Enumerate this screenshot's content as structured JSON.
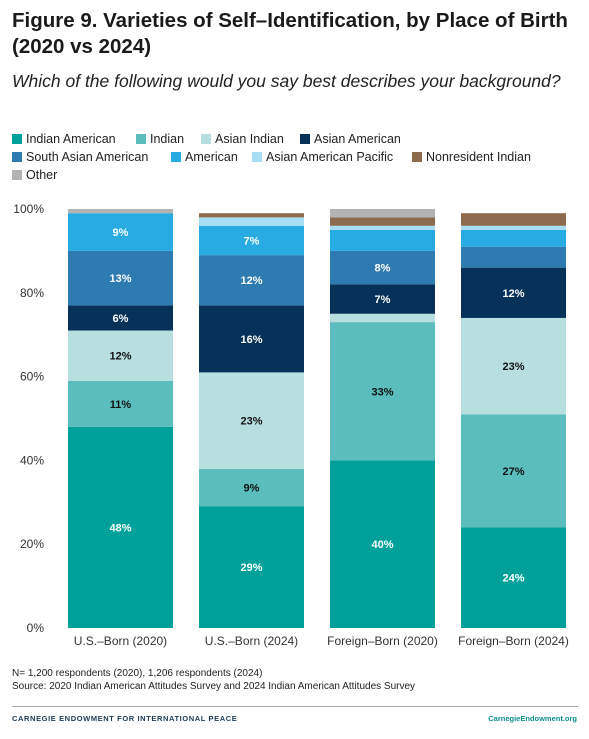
{
  "header": {
    "title": "Figure 9. Varieties of Self–Identification, by Place of Birth (2020 vs 2024)",
    "subtitle": "Which of the following would you say best describes your background?"
  },
  "footer": {
    "note": "N= 1,200 respondents (2020), 1,206 respondents (2024)",
    "source": "Source: 2020 Indian American Attitudes Survey and 2024 Indian American Attitudes Survey",
    "organization": "CARNEGIE ENDOWMENT FOR INTERNATIONAL PEACE",
    "website": "CarnegieEndowment.org"
  },
  "chart_data": {
    "type": "bar",
    "stacked": true,
    "categories": [
      "U.S.–Born (2020)",
      "U.S.–Born (2024)",
      "Foreign–Born (2020)",
      "Foreign–Born (2024)"
    ],
    "ylim": [
      0,
      100
    ],
    "yticks": [
      "0%",
      "20%",
      "40%",
      "60%",
      "80%",
      "100%"
    ],
    "grid": false,
    "legend_position": "top",
    "series": [
      {
        "name": "Indian American",
        "color": "#00a19a",
        "values": [
          48,
          29,
          40,
          24
        ],
        "labels": [
          "48%",
          "29%",
          "40%",
          "24%"
        ],
        "label_color": "#ffffff"
      },
      {
        "name": "Indian",
        "color": "#5bbdbd",
        "values": [
          11,
          9,
          33,
          27
        ],
        "labels": [
          "11%",
          "9%",
          "33%",
          "27%"
        ],
        "label_color": "#111111"
      },
      {
        "name": "Asian Indian",
        "color": "#b8dfe0",
        "values": [
          12,
          23,
          2,
          23
        ],
        "labels": [
          "12%",
          "23%",
          "",
          "23%"
        ],
        "label_color": "#111111"
      },
      {
        "name": "Asian American",
        "color": "#06325a",
        "values": [
          6,
          16,
          7,
          12
        ],
        "labels": [
          "6%",
          "16%",
          "7%",
          "12%"
        ],
        "label_color": "#ffffff"
      },
      {
        "name": "South Asian American",
        "color": "#2e7bb2",
        "values": [
          13,
          12,
          8,
          5
        ],
        "labels": [
          "13%",
          "12%",
          "8%",
          ""
        ],
        "label_color": "#ffffff"
      },
      {
        "name": "American",
        "color": "#28abe3",
        "values": [
          9,
          7,
          5,
          4
        ],
        "labels": [
          "9%",
          "7%",
          "",
          ""
        ],
        "label_color": "#ffffff"
      },
      {
        "name": "Asian American Pacific",
        "color": "#a8def4",
        "values": [
          0,
          2,
          1,
          1
        ],
        "labels": [
          "",
          "",
          "",
          ""
        ],
        "label_color": "#111111"
      },
      {
        "name": "Nonresident Indian",
        "color": "#8c6b4f",
        "values": [
          0,
          1,
          2,
          3
        ],
        "labels": [
          "",
          "",
          "",
          ""
        ],
        "label_color": "#ffffff"
      },
      {
        "name": "Other",
        "color": "#b3b3b3",
        "values": [
          1,
          0,
          2,
          0
        ],
        "labels": [
          "",
          "",
          "",
          ""
        ],
        "label_color": "#111111"
      }
    ]
  }
}
